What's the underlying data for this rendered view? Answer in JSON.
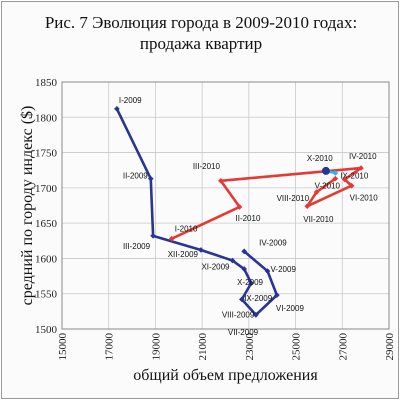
{
  "chart_data": {
    "type": "line",
    "title_line1": "Рис. 7 Эволюция города в 2009-2010 годах:",
    "title_line2": "продажа квартир",
    "xlabel": "общий объем предложения",
    "ylabel": "средний по городу индекс ($)",
    "xlim": [
      15000,
      29000
    ],
    "ylim": [
      1500,
      1850
    ],
    "xticks": [
      "15000",
      "17000",
      "19000",
      "21000",
      "23000",
      "25000",
      "27000",
      "29000"
    ],
    "yticks": [
      "1500",
      "1550",
      "1600",
      "1650",
      "1700",
      "1750",
      "1800",
      "1850"
    ],
    "grid": true,
    "series": [
      {
        "color": "#283593",
        "points": [
          {
            "label": "I-2009",
            "x": 17350,
            "y": 1812
          },
          {
            "label": "II-2009",
            "x": 18800,
            "y": 1713
          },
          {
            "label": "III-2009",
            "x": 18900,
            "y": 1632
          },
          {
            "label": "XII-2009",
            "x": 20950,
            "y": 1612
          },
          {
            "label": "XI-2009",
            "x": 22300,
            "y": 1597
          },
          {
            "label": "X-2009",
            "x": 22800,
            "y": 1585
          },
          {
            "label": "IX-2009",
            "x": 23100,
            "y": 1565
          },
          {
            "label": "VIII-2009",
            "x": 22700,
            "y": 1542
          },
          {
            "label": "VII-2009",
            "x": 23300,
            "y": 1520
          },
          {
            "label": "VI-2009",
            "x": 24200,
            "y": 1548
          },
          {
            "label": "V-2009",
            "x": 23800,
            "y": 1582
          },
          {
            "label": "IV-2009",
            "x": 22800,
            "y": 1610
          }
        ]
      },
      {
        "color": "#e53935",
        "points": [
          {
            "label": "I-2010",
            "x": 19700,
            "y": 1628
          },
          {
            "label": "II-2010",
            "x": 22600,
            "y": 1673
          },
          {
            "label": "III-2010",
            "x": 21800,
            "y": 1710
          },
          {
            "label": "IV-2010",
            "x": 27800,
            "y": 1728
          },
          {
            "label": "V-2010",
            "x": 27100,
            "y": 1712
          },
          {
            "label": "VI-2010",
            "x": 27400,
            "y": 1703
          },
          {
            "label": "VII-2010",
            "x": 25500,
            "y": 1674
          },
          {
            "label": "VIII-2010",
            "x": 25900,
            "y": 1694
          },
          {
            "label": "IX-2010",
            "x": 26700,
            "y": 1713
          }
        ]
      },
      {
        "color": "#29b6f6",
        "points": [
          {
            "label": "X-2010",
            "x": 26300,
            "y": 1724
          },
          {
            "label": "",
            "x": 26700,
            "y": 1721
          }
        ]
      }
    ]
  }
}
